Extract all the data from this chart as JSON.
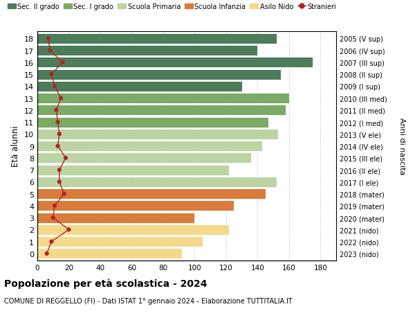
{
  "ages": [
    18,
    17,
    16,
    15,
    14,
    13,
    12,
    11,
    10,
    9,
    8,
    7,
    6,
    5,
    4,
    3,
    2,
    1,
    0
  ],
  "years_labels": [
    "2005 (V sup)",
    "2006 (IV sup)",
    "2007 (III sup)",
    "2008 (II sup)",
    "2009 (I sup)",
    "2010 (III med)",
    "2011 (II med)",
    "2012 (I med)",
    "2013 (V ele)",
    "2014 (IV ele)",
    "2015 (III ele)",
    "2016 (II ele)",
    "2017 (I ele)",
    "2018 (mater)",
    "2019 (mater)",
    "2020 (mater)",
    "2021 (nido)",
    "2022 (nido)",
    "2023 (nido)"
  ],
  "bar_values": [
    152,
    140,
    175,
    155,
    130,
    160,
    158,
    147,
    153,
    143,
    136,
    122,
    152,
    145,
    125,
    100,
    122,
    105,
    92
  ],
  "bar_colors": [
    "#4d7c5a",
    "#4d7c5a",
    "#4d7c5a",
    "#4d7c5a",
    "#4d7c5a",
    "#7aaa65",
    "#7aaa65",
    "#7aaa65",
    "#bbd4a2",
    "#bbd4a2",
    "#bbd4a2",
    "#bbd4a2",
    "#bbd4a2",
    "#d97b3a",
    "#d97b3a",
    "#d97b3a",
    "#f5d98b",
    "#f5d98b",
    "#f5d98b"
  ],
  "stranieri_values": [
    7,
    8,
    16,
    9,
    11,
    15,
    12,
    13,
    14,
    13,
    18,
    14,
    14,
    17,
    11,
    10,
    20,
    9,
    6
  ],
  "legend_labels": [
    "Sec. II grado",
    "Sec. I grado",
    "Scuola Primaria",
    "Scuola Infanzia",
    "Asilo Nido",
    "Stranieri"
  ],
  "legend_colors": [
    "#4d7c5a",
    "#7aaa65",
    "#bbd4a2",
    "#d97b3a",
    "#f5d98b",
    "#b22222"
  ],
  "ylabel": "Età alunni",
  "right_ylabel": "Anni di nascita",
  "title": "Popolazione per età scolastica - 2024",
  "subtitle": "COMUNE DI REGGELLO (FI) - Dati ISTAT 1° gennaio 2024 - Elaborazione TUTTITALIA.IT",
  "xlim": [
    0,
    190
  ],
  "xticks": [
    0,
    20,
    40,
    60,
    80,
    100,
    120,
    140,
    160,
    180
  ],
  "background_color": "#ffffff",
  "grid_color": "#d0d0d0"
}
